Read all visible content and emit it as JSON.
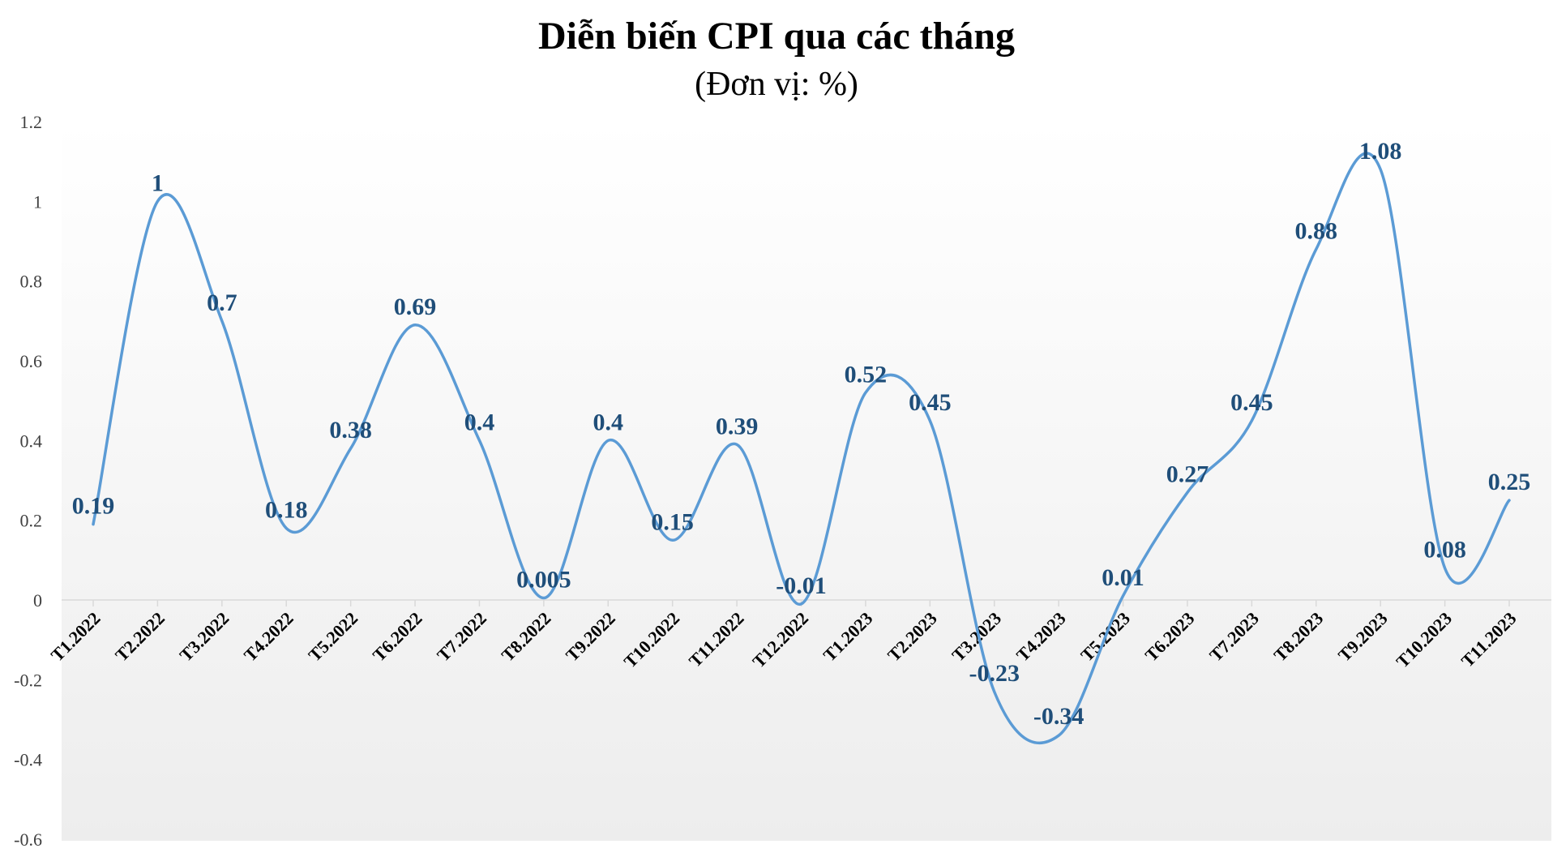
{
  "chart_data": {
    "type": "line",
    "title": "Diễn biến CPI qua các tháng",
    "subtitle": "(Đơn vị: %)",
    "xlabel": "",
    "ylabel": "",
    "categories": [
      "T1.2022",
      "T2.2022",
      "T3.2022",
      "T4.2022",
      "T5.2022",
      "T6.2022",
      "T7.2022",
      "T8.2022",
      "T9.2022",
      "T10.2022",
      "T11.2022",
      "T12.2022",
      "T1.2023",
      "T2.2023",
      "T3.2023",
      "T4.2023",
      "T5.2023",
      "T6.2023",
      "T7.2023",
      "T8.2023",
      "T9.2023",
      "T10.2023",
      "T11.2023"
    ],
    "series": [
      {
        "values": [
          0.19,
          1,
          0.7,
          0.18,
          0.38,
          0.69,
          0.4,
          0.005,
          0.4,
          0.15,
          0.39,
          -0.01,
          0.52,
          0.45,
          -0.23,
          -0.34,
          0.01,
          0.27,
          0.45,
          0.88,
          1.08,
          0.08,
          0.25
        ]
      }
    ],
    "data_labels": [
      "0.19",
      "1",
      "0.7",
      "0.18",
      "0.38",
      "0.69",
      "0.4",
      "0.005",
      "0.4",
      "0.15",
      "0.39",
      "-0.01",
      "0.52",
      "0.45",
      "-0.23",
      "-0.34",
      "0.01",
      "0.27",
      "0.45",
      "0.88",
      "1.08",
      "0.08",
      "0.25"
    ],
    "ylim": [
      -0.6,
      1.2
    ],
    "yticks": [
      "1.2",
      "1",
      "0.8",
      "0.6",
      "0.4",
      "0.2",
      "0",
      "-0.2",
      "-0.4",
      "-0.6"
    ],
    "ytick_values": [
      1.2,
      1,
      0.8,
      0.6,
      0.4,
      0.2,
      0,
      -0.2,
      -0.4,
      -0.6
    ],
    "smooth": true,
    "grid": false,
    "legend": "none",
    "colors": {
      "line": "#5b9bd5",
      "label": "#1f4e79",
      "plot_background_top": "#ffffff",
      "plot_background_bottom": "#ededed"
    }
  }
}
